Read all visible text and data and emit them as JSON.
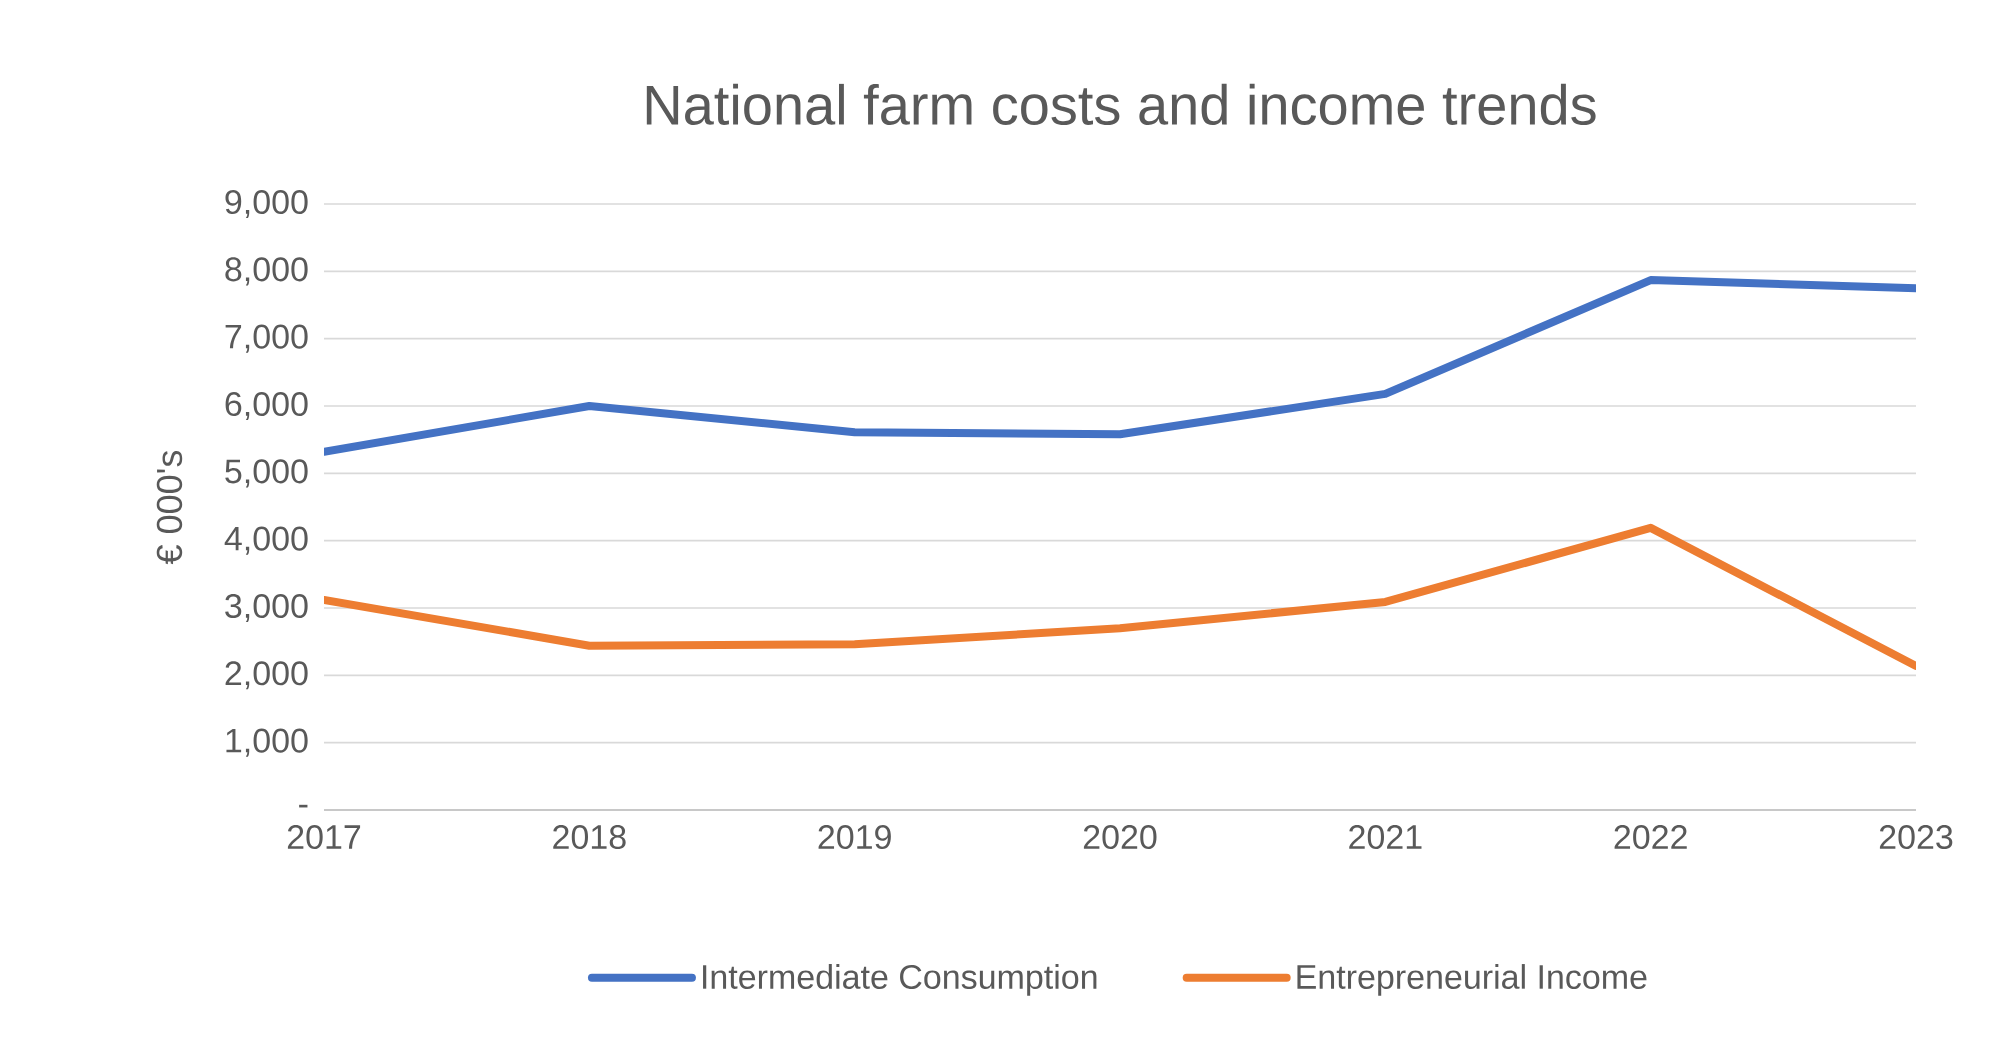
{
  "chart_data": {
    "type": "line",
    "title": "National farm costs and income trends",
    "ylabel": "€ 000's",
    "categories": [
      "2017",
      "2018",
      "2019",
      "2020",
      "2021",
      "2022",
      "2023"
    ],
    "series": [
      {
        "name": "Intermediate Consumption",
        "color": "#4472c4",
        "values": [
          5320,
          6000,
          5610,
          5580,
          6180,
          7870,
          7750
        ]
      },
      {
        "name": "Entrepreneurial Income",
        "color": "#ed7d31",
        "values": [
          3120,
          2440,
          2460,
          2700,
          3090,
          4190,
          2140
        ]
      }
    ],
    "ylim": [
      0,
      9000
    ],
    "yticks": [
      {
        "value": 0,
        "label": "-"
      },
      {
        "value": 1000,
        "label": "1,000"
      },
      {
        "value": 2000,
        "label": "2,000"
      },
      {
        "value": 3000,
        "label": "3,000"
      },
      {
        "value": 4000,
        "label": "4,000"
      },
      {
        "value": 5000,
        "label": "5,000"
      },
      {
        "value": 6000,
        "label": "6,000"
      },
      {
        "value": 7000,
        "label": "7,000"
      },
      {
        "value": 8000,
        "label": "8,000"
      },
      {
        "value": 9000,
        "label": "9,000"
      }
    ],
    "grid": "y",
    "legend": "bottom"
  }
}
